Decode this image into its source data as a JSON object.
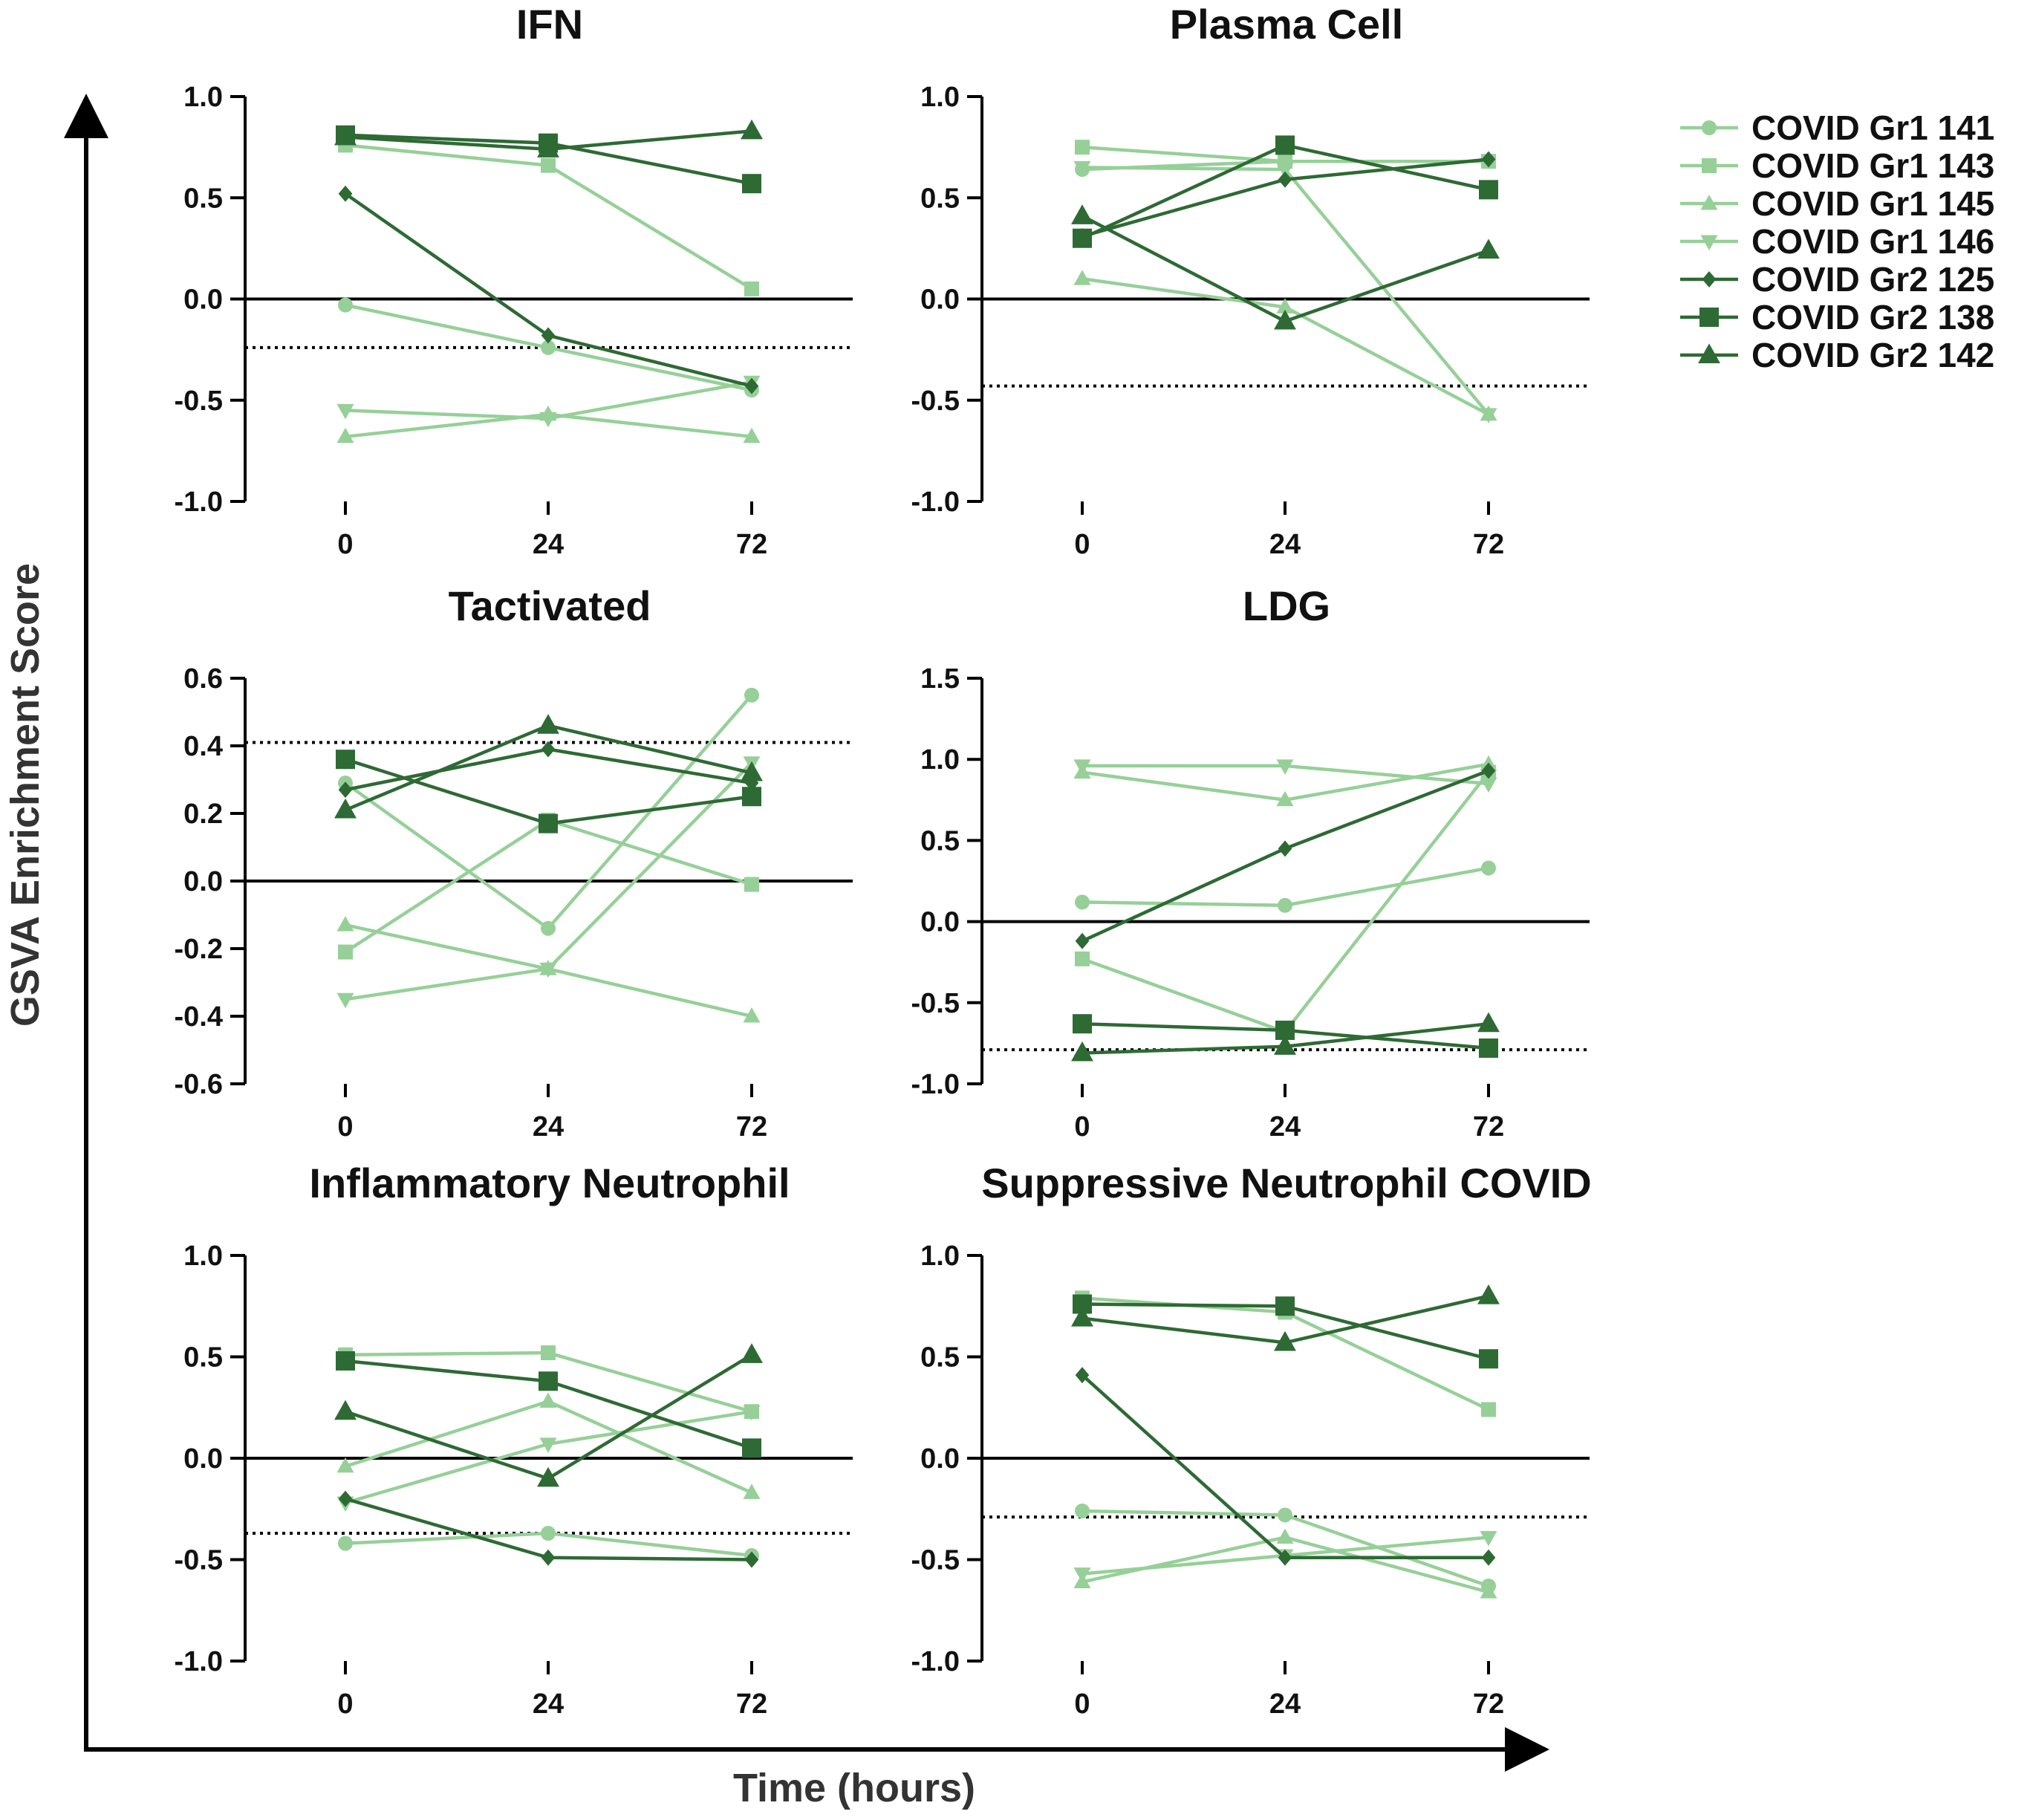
{
  "figure": {
    "y_axis_title": "GSVA Enrichment Score",
    "x_axis_title": "Time (hours)"
  },
  "colors": {
    "gr1": "#96d098",
    "gr2": "#2e6a34",
    "axis": "#000000"
  },
  "legend": [
    {
      "label": "COVID Gr1 141",
      "group": "gr1",
      "marker": "circle"
    },
    {
      "label": "COVID Gr1 143",
      "group": "gr1",
      "marker": "square"
    },
    {
      "label": "COVID Gr1 145",
      "group": "gr1",
      "marker": "triangle-up"
    },
    {
      "label": "COVID Gr1 146",
      "group": "gr1",
      "marker": "triangle-down"
    },
    {
      "label": "COVID Gr2 125",
      "group": "gr2",
      "marker": "diamond"
    },
    {
      "label": "COVID Gr2 138",
      "group": "gr2",
      "marker": "square"
    },
    {
      "label": "COVID Gr2 142",
      "group": "gr2",
      "marker": "triangle-up"
    }
  ],
  "chart_data": [
    {
      "type": "line",
      "title": "IFN",
      "x": [
        0,
        24,
        72
      ],
      "x_tick_labels": [
        "0",
        "24",
        "72"
      ],
      "ylim": [
        -1.0,
        1.0
      ],
      "y_ticks": [
        -1.0,
        -0.5,
        0.0,
        0.5,
        1.0
      ],
      "y_tick_labels": [
        "-1.0",
        "-0.5",
        "0.0",
        "0.5",
        "1.0"
      ],
      "threshold": -0.24,
      "series": [
        {
          "name": "COVID Gr1 141",
          "values": [
            -0.03,
            -0.24,
            -0.45
          ]
        },
        {
          "name": "COVID Gr1 143",
          "values": [
            0.76,
            0.66,
            0.05
          ]
        },
        {
          "name": "COVID Gr1 145",
          "values": [
            -0.68,
            -0.57,
            -0.68
          ]
        },
        {
          "name": "COVID Gr1 146",
          "values": [
            -0.55,
            -0.59,
            -0.41
          ]
        },
        {
          "name": "COVID Gr2 125",
          "values": [
            0.52,
            -0.18,
            -0.43
          ]
        },
        {
          "name": "COVID Gr2 138",
          "values": [
            0.81,
            0.77,
            0.57
          ]
        },
        {
          "name": "COVID Gr2 142",
          "values": [
            0.8,
            0.74,
            0.83
          ]
        }
      ]
    },
    {
      "type": "line",
      "title": "Plasma Cell",
      "x": [
        0,
        24,
        72
      ],
      "x_tick_labels": [
        "0",
        "24",
        "72"
      ],
      "ylim": [
        -1.0,
        1.0
      ],
      "y_ticks": [
        -1.0,
        -0.5,
        0.0,
        0.5,
        1.0
      ],
      "y_tick_labels": [
        "-1.0",
        "-0.5",
        "0.0",
        "0.5",
        "1.0"
      ],
      "threshold": -0.43,
      "series": [
        {
          "name": "COVID Gr1 141",
          "values": [
            0.64,
            0.68,
            0.68
          ]
        },
        {
          "name": "COVID Gr1 143",
          "values": [
            0.75,
            0.68,
            0.68
          ]
        },
        {
          "name": "COVID Gr1 145",
          "values": [
            0.1,
            -0.04,
            -0.57
          ]
        },
        {
          "name": "COVID Gr1 146",
          "values": [
            0.65,
            0.64,
            -0.57
          ]
        },
        {
          "name": "COVID Gr2 125",
          "values": [
            0.31,
            0.59,
            0.69
          ]
        },
        {
          "name": "COVID Gr2 138",
          "values": [
            0.3,
            0.76,
            0.54
          ]
        },
        {
          "name": "COVID Gr2 142",
          "values": [
            0.41,
            -0.11,
            0.24
          ]
        }
      ]
    },
    {
      "type": "line",
      "title": "Tactivated",
      "x": [
        0,
        24,
        72
      ],
      "x_tick_labels": [
        "0",
        "24",
        "72"
      ],
      "ylim": [
        -0.6,
        0.6
      ],
      "y_ticks": [
        -0.6,
        -0.4,
        -0.2,
        0.0,
        0.2,
        0.4,
        0.6
      ],
      "y_tick_labels": [
        "-0.6",
        "-0.4",
        "-0.2",
        "0.0",
        "0.2",
        "0.4",
        "0.6"
      ],
      "threshold": 0.41,
      "series": [
        {
          "name": "COVID Gr1 141",
          "values": [
            0.29,
            -0.14,
            0.55
          ]
        },
        {
          "name": "COVID Gr1 143",
          "values": [
            -0.21,
            0.18,
            -0.01
          ]
        },
        {
          "name": "COVID Gr1 145",
          "values": [
            -0.13,
            -0.26,
            -0.4
          ]
        },
        {
          "name": "COVID Gr1 146",
          "values": [
            -0.35,
            -0.26,
            0.35
          ]
        },
        {
          "name": "COVID Gr2 125",
          "values": [
            0.27,
            0.39,
            0.29
          ]
        },
        {
          "name": "COVID Gr2 138",
          "values": [
            0.36,
            0.17,
            0.25
          ]
        },
        {
          "name": "COVID Gr2 142",
          "values": [
            0.21,
            0.46,
            0.32
          ]
        }
      ]
    },
    {
      "type": "line",
      "title": "LDG",
      "x": [
        0,
        24,
        72
      ],
      "x_tick_labels": [
        "0",
        "24",
        "72"
      ],
      "ylim": [
        -1.0,
        1.5
      ],
      "y_ticks": [
        -1.0,
        -0.5,
        0.0,
        0.5,
        1.0,
        1.5
      ],
      "y_tick_labels": [
        "-1.0",
        "-0.5",
        "0.0",
        "0.5",
        "1.0",
        "1.5"
      ],
      "threshold": -0.79,
      "series": [
        {
          "name": "COVID Gr1 141",
          "values": [
            0.12,
            0.1,
            0.33
          ]
        },
        {
          "name": "COVID Gr1 143",
          "values": [
            -0.23,
            -0.68,
            0.92
          ]
        },
        {
          "name": "COVID Gr1 145",
          "values": [
            0.92,
            0.75,
            0.97
          ]
        },
        {
          "name": "COVID Gr1 146",
          "values": [
            0.96,
            0.96,
            0.85
          ]
        },
        {
          "name": "COVID Gr2 125",
          "values": [
            -0.12,
            0.45,
            0.93
          ]
        },
        {
          "name": "COVID Gr2 138",
          "values": [
            -0.63,
            -0.67,
            -0.78
          ]
        },
        {
          "name": "COVID Gr2 142",
          "values": [
            -0.81,
            -0.77,
            -0.63
          ]
        }
      ]
    },
    {
      "type": "line",
      "title": "Inflammatory Neutrophil",
      "x": [
        0,
        24,
        72
      ],
      "x_tick_labels": [
        "0",
        "24",
        "72"
      ],
      "ylim": [
        -1.0,
        1.0
      ],
      "y_ticks": [
        -1.0,
        -0.5,
        0.0,
        0.5,
        1.0
      ],
      "y_tick_labels": [
        "-1.0",
        "-0.5",
        "0.0",
        "0.5",
        "1.0"
      ],
      "threshold": -0.37,
      "series": [
        {
          "name": "COVID Gr1 141",
          "values": [
            -0.42,
            -0.37,
            -0.48
          ]
        },
        {
          "name": "COVID Gr1 143",
          "values": [
            0.51,
            0.52,
            0.23
          ]
        },
        {
          "name": "COVID Gr1 145",
          "values": [
            -0.04,
            0.28,
            -0.17
          ]
        },
        {
          "name": "COVID Gr1 146",
          "values": [
            -0.22,
            0.07,
            0.23
          ]
        },
        {
          "name": "COVID Gr2 125",
          "values": [
            -0.2,
            -0.49,
            -0.5
          ]
        },
        {
          "name": "COVID Gr2 138",
          "values": [
            0.48,
            0.38,
            0.05
          ]
        },
        {
          "name": "COVID Gr2 142",
          "values": [
            0.23,
            -0.1,
            0.51
          ]
        }
      ]
    },
    {
      "type": "line",
      "title": "Suppressive Neutrophil COVID",
      "x": [
        0,
        24,
        72
      ],
      "x_tick_labels": [
        "0",
        "24",
        "72"
      ],
      "ylim": [
        -1.0,
        1.0
      ],
      "y_ticks": [
        -1.0,
        -0.5,
        0.0,
        0.5,
        1.0
      ],
      "y_tick_labels": [
        "-1.0",
        "-0.5",
        "0.0",
        "0.5",
        "1.0"
      ],
      "threshold": -0.29,
      "series": [
        {
          "name": "COVID Gr1 141",
          "values": [
            -0.26,
            -0.28,
            -0.63
          ]
        },
        {
          "name": "COVID Gr1 143",
          "values": [
            0.79,
            0.72,
            0.24
          ]
        },
        {
          "name": "COVID Gr1 145",
          "values": [
            -0.61,
            -0.39,
            -0.66
          ]
        },
        {
          "name": "COVID Gr1 146",
          "values": [
            -0.57,
            -0.48,
            -0.39
          ]
        },
        {
          "name": "COVID Gr2 125",
          "values": [
            0.41,
            -0.49,
            -0.49
          ]
        },
        {
          "name": "COVID Gr2 138",
          "values": [
            0.76,
            0.75,
            0.49
          ]
        },
        {
          "name": "COVID Gr2 142",
          "values": [
            0.69,
            0.57,
            0.8
          ]
        }
      ]
    }
  ]
}
